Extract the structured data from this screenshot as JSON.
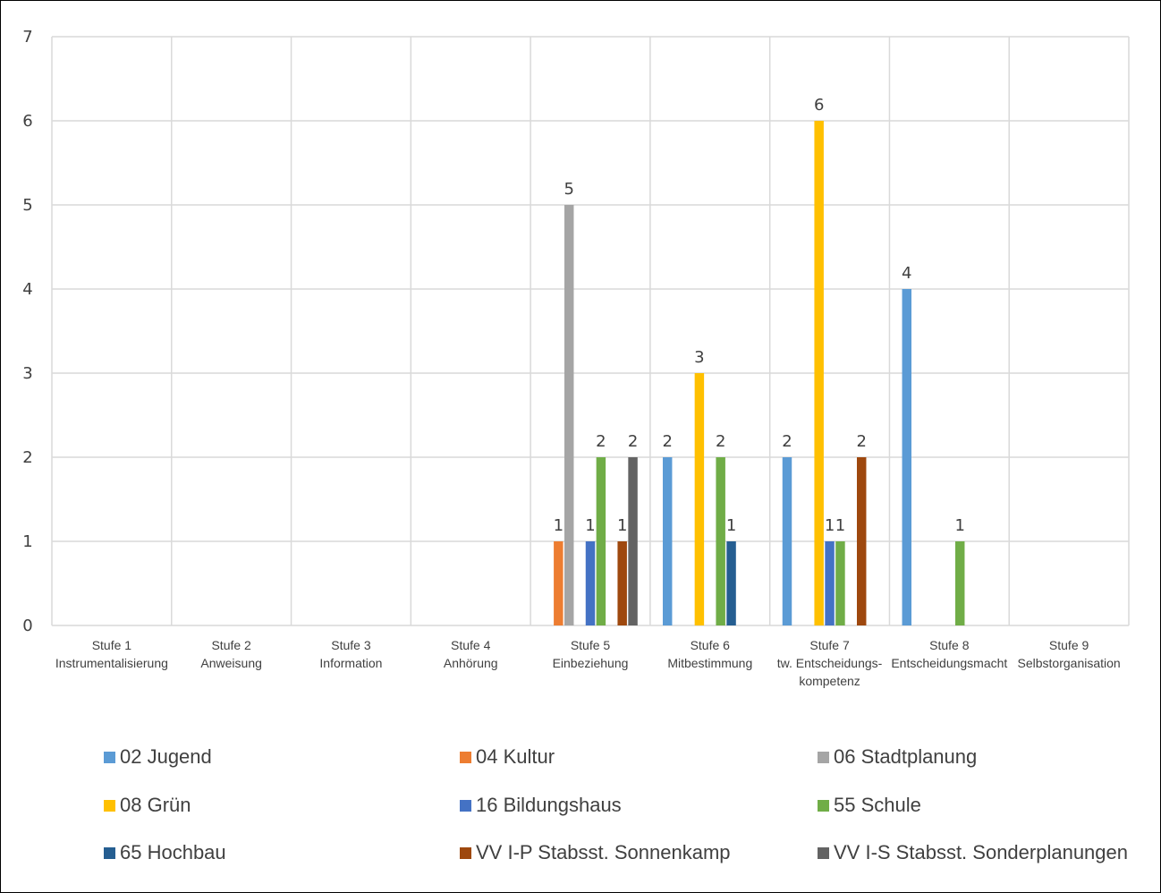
{
  "chart_data": {
    "type": "bar",
    "categories": [
      [
        "Stufe 1",
        "Instrumentalisierung"
      ],
      [
        "Stufe 2",
        "Anweisung"
      ],
      [
        "Stufe 3",
        "Information"
      ],
      [
        "Stufe 4",
        "Anhörung"
      ],
      [
        "Stufe 5",
        "Einbeziehung"
      ],
      [
        "Stufe 6",
        "Mitbestimmung"
      ],
      [
        "Stufe 7",
        "tw. Entscheidungs-",
        "kompetenz"
      ],
      [
        "Stufe 8",
        "Entscheidungsmacht"
      ],
      [
        "Stufe 9",
        "Selbstorganisation"
      ]
    ],
    "ylim": [
      0,
      7
    ],
    "yticks": [
      0,
      1,
      2,
      3,
      4,
      5,
      6,
      7
    ],
    "grid": true,
    "legend_position": "bottom",
    "series": [
      {
        "name": "02 Jugend",
        "color": "#5b9bd5",
        "values": [
          null,
          null,
          null,
          null,
          null,
          2,
          2,
          4,
          null
        ]
      },
      {
        "name": "04 Kultur",
        "color": "#ed7d31",
        "values": [
          null,
          null,
          null,
          null,
          1,
          null,
          null,
          null,
          null
        ]
      },
      {
        "name": "06 Stadtplanung",
        "color": "#a5a5a5",
        "values": [
          null,
          null,
          null,
          null,
          5,
          null,
          null,
          null,
          null
        ]
      },
      {
        "name": "08 Grün",
        "color": "#ffc000",
        "values": [
          null,
          null,
          null,
          null,
          null,
          3,
          6,
          null,
          null
        ]
      },
      {
        "name": "16 Bildungshaus",
        "color": "#4472c4",
        "values": [
          null,
          null,
          null,
          null,
          1,
          null,
          1,
          null,
          null
        ]
      },
      {
        "name": "55 Schule",
        "color": "#70ad47",
        "values": [
          null,
          null,
          null,
          null,
          2,
          2,
          1,
          1,
          null
        ]
      },
      {
        "name": "65 Hochbau",
        "color": "#255e91",
        "values": [
          null,
          null,
          null,
          null,
          null,
          1,
          null,
          null,
          null
        ]
      },
      {
        "name": "VV I-P Stabsst. Sonnenkamp",
        "color": "#9e480e",
        "values": [
          null,
          null,
          null,
          null,
          1,
          null,
          2,
          null,
          null
        ]
      },
      {
        "name": "VV I-S Stabsst. Sonderplanungen",
        "color": "#636363",
        "values": [
          null,
          null,
          null,
          null,
          2,
          null,
          null,
          null,
          null
        ]
      }
    ]
  }
}
